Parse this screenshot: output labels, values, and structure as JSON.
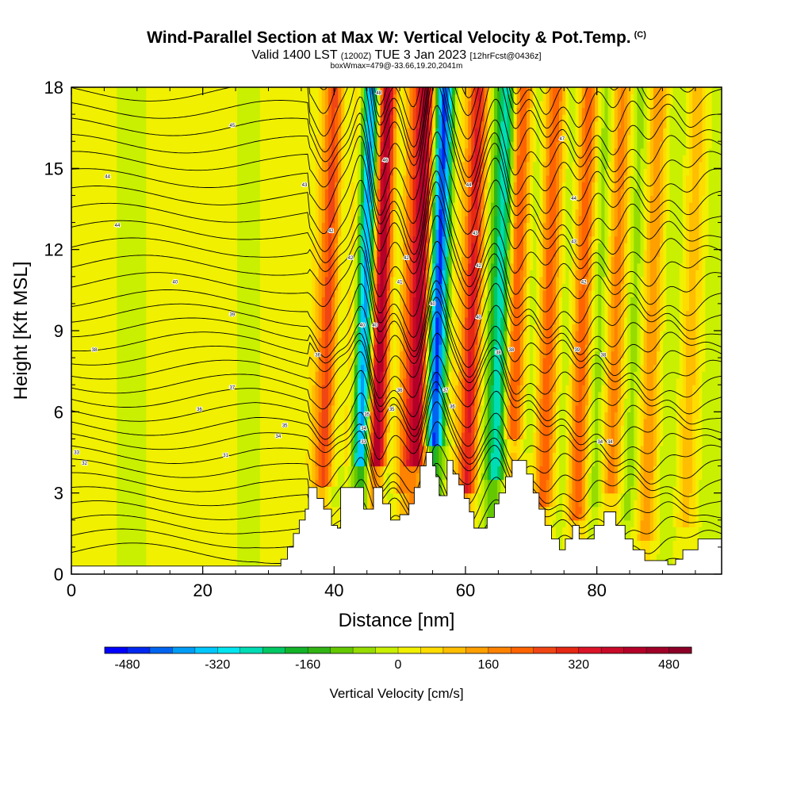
{
  "header": {
    "title": "Wind-Parallel Section at Max W: Vertical Velocity & Pot.Temp.",
    "copyright": "(C)",
    "valid_prefix": "Valid 1400 LST",
    "valid_utc": "(1200Z)",
    "valid_date": "TUE 3 Jan 2023",
    "forecast": "[12hrFcst@0436z]",
    "box_info": "boxWmax=479@-33.66,19.20,2041m"
  },
  "chart_data": {
    "type": "heatmap",
    "xlabel": "Distance [nm]",
    "ylabel": "Height [Kft MSL]",
    "xlim": [
      0,
      99
    ],
    "ylim": [
      0,
      18
    ],
    "xticks": [
      "0",
      "20",
      "40",
      "60",
      "80"
    ],
    "yticks": [
      "0",
      "3",
      "6",
      "9",
      "12",
      "15",
      "18"
    ],
    "colorbar": {
      "title": "Vertical Velocity [cm/s]",
      "range": [
        -520,
        520
      ],
      "step": 40,
      "labels": [
        "-480",
        "-320",
        "-160",
        "0",
        "160",
        "320",
        "480"
      ],
      "label_values": [
        -480,
        -320,
        -160,
        0,
        160,
        320,
        480
      ],
      "colors": [
        "#0000ff",
        "#0028f0",
        "#0064f0",
        "#009cf5",
        "#00c8ff",
        "#00e6f0",
        "#00dcb4",
        "#00c864",
        "#14b428",
        "#32b414",
        "#64c800",
        "#96dc00",
        "#c8f000",
        "#f0f000",
        "#ffdc00",
        "#ffbe00",
        "#ffa000",
        "#ff8200",
        "#ff6400",
        "#f04614",
        "#e62814",
        "#dc1428",
        "#c80a28",
        "#b40028",
        "#a00028",
        "#8c0028"
      ]
    },
    "w_bands": [
      {
        "x": 37,
        "w": 40
      },
      {
        "x": 38.8,
        "w": 260
      },
      {
        "x": 40.5,
        "w": -60
      },
      {
        "x": 42.6,
        "w": 120
      },
      {
        "x": 44.3,
        "w": -440
      },
      {
        "x": 46.6,
        "w": 480
      },
      {
        "x": 48.8,
        "w": -60
      },
      {
        "x": 50.6,
        "w": 160
      },
      {
        "x": 52.7,
        "w": 420
      },
      {
        "x": 55.4,
        "w": -470
      },
      {
        "x": 57.5,
        "w": 60
      },
      {
        "x": 60.6,
        "w": 330
      },
      {
        "x": 62.5,
        "w": -30
      },
      {
        "x": 64.9,
        "w": -280
      },
      {
        "x": 67.3,
        "w": 260
      },
      {
        "x": 69.6,
        "w": -40
      },
      {
        "x": 72.3,
        "w": 230
      },
      {
        "x": 75,
        "w": -40
      },
      {
        "x": 77.4,
        "w": 230
      },
      {
        "x": 80,
        "w": -70
      },
      {
        "x": 82.5,
        "w": 180
      },
      {
        "x": 85.3,
        "w": -60
      },
      {
        "x": 88,
        "w": 150
      },
      {
        "x": 91,
        "w": -40
      },
      {
        "x": 94,
        "w": 100
      },
      {
        "x": 97,
        "w": -20
      },
      {
        "x": 5,
        "w": 20
      },
      {
        "x": 9,
        "w": -20
      },
      {
        "x": 14,
        "w": 20
      },
      {
        "x": 22,
        "w": 25
      },
      {
        "x": 27,
        "w": -15
      },
      {
        "x": 31.5,
        "w": 30
      }
    ],
    "terrain": [
      [
        0,
        0.3
      ],
      [
        31.9,
        0.3
      ],
      [
        31.9,
        0.55
      ],
      [
        32.9,
        0.55
      ],
      [
        32.9,
        1.0
      ],
      [
        33.8,
        1.0
      ],
      [
        33.8,
        1.5
      ],
      [
        34.7,
        1.5
      ],
      [
        34.7,
        2.0
      ],
      [
        35.6,
        2.0
      ],
      [
        35.6,
        2.4
      ],
      [
        36.1,
        2.4
      ],
      [
        36.1,
        3.2
      ],
      [
        37.4,
        3.2
      ],
      [
        37.4,
        2.8
      ],
      [
        38.4,
        2.8
      ],
      [
        38.4,
        2.4
      ],
      [
        39.6,
        2.4
      ],
      [
        39.6,
        1.8
      ],
      [
        40.5,
        1.8
      ],
      [
        40.5,
        1.7
      ],
      [
        41,
        1.7
      ],
      [
        41,
        3.2
      ],
      [
        44.5,
        3.2
      ],
      [
        44.5,
        2.4
      ],
      [
        46,
        2.4
      ],
      [
        46,
        3.2
      ],
      [
        47.4,
        3.2
      ],
      [
        47.4,
        2.6
      ],
      [
        48.6,
        2.6
      ],
      [
        48.6,
        2.0
      ],
      [
        50,
        2.0
      ],
      [
        50,
        2.2
      ],
      [
        51.4,
        2.2
      ],
      [
        51.4,
        2.6
      ],
      [
        52.2,
        2.6
      ],
      [
        52.2,
        3.2
      ],
      [
        53.1,
        3.2
      ],
      [
        53.1,
        4.0
      ],
      [
        54,
        4.0
      ],
      [
        54,
        4.5
      ],
      [
        55,
        4.5
      ],
      [
        55,
        4.0
      ],
      [
        55.5,
        4.0
      ],
      [
        55.5,
        3.6
      ],
      [
        56,
        3.6
      ],
      [
        56,
        2.9
      ],
      [
        57.2,
        2.9
      ],
      [
        57.2,
        4.2
      ],
      [
        58.1,
        4.2
      ],
      [
        58.1,
        3.7
      ],
      [
        59,
        3.7
      ],
      [
        59,
        3.3
      ],
      [
        59.8,
        3.3
      ],
      [
        59.8,
        2.8
      ],
      [
        60.6,
        2.8
      ],
      [
        60.6,
        2.3
      ],
      [
        61.3,
        2.3
      ],
      [
        61.3,
        1.7
      ],
      [
        63.3,
        1.7
      ],
      [
        63.3,
        2.1
      ],
      [
        64.4,
        2.1
      ],
      [
        64.4,
        2.6
      ],
      [
        65.1,
        2.6
      ],
      [
        65.1,
        3.0
      ],
      [
        66.1,
        3.0
      ],
      [
        66.1,
        3.6
      ],
      [
        67.1,
        3.6
      ],
      [
        67.1,
        4.2
      ],
      [
        69.3,
        4.2
      ],
      [
        69.3,
        3.7
      ],
      [
        70.3,
        3.7
      ],
      [
        70.3,
        3.0
      ],
      [
        71.2,
        3.0
      ],
      [
        71.2,
        2.4
      ],
      [
        72.1,
        2.4
      ],
      [
        72.1,
        1.8
      ],
      [
        73.1,
        1.8
      ],
      [
        73.1,
        1.3
      ],
      [
        74.3,
        1.3
      ],
      [
        74.3,
        0.9
      ],
      [
        75.2,
        0.9
      ],
      [
        75.2,
        1.3
      ],
      [
        76.3,
        1.3
      ],
      [
        76.3,
        1.8
      ],
      [
        77.3,
        1.8
      ],
      [
        77.3,
        1.3
      ],
      [
        78.5,
        1.3
      ],
      [
        78.5,
        1.3
      ],
      [
        79.6,
        1.3
      ],
      [
        79.6,
        1.8
      ],
      [
        81.1,
        1.8
      ],
      [
        81.1,
        2.3
      ],
      [
        82.9,
        2.3
      ],
      [
        82.9,
        1.8
      ],
      [
        84.3,
        1.8
      ],
      [
        84.3,
        1.3
      ],
      [
        85.5,
        1.3
      ],
      [
        85.5,
        0.9
      ],
      [
        87.3,
        0.9
      ],
      [
        87.3,
        0.5
      ],
      [
        90.8,
        0.5
      ],
      [
        90.8,
        0.35
      ],
      [
        92,
        0.35
      ],
      [
        92,
        0.55
      ],
      [
        93.1,
        0.55
      ],
      [
        93.1,
        0.9
      ],
      [
        95.4,
        0.9
      ],
      [
        95.4,
        1.3
      ],
      [
        96.6,
        1.3
      ],
      [
        96.6,
        1.3
      ],
      [
        99,
        1.3
      ]
    ],
    "contour_labels": [
      {
        "x": 24.5,
        "y": 16.6,
        "text": "45"
      },
      {
        "x": 5.5,
        "y": 14.7,
        "text": "44"
      },
      {
        "x": 7,
        "y": 12.9,
        "text": "44"
      },
      {
        "x": 35.5,
        "y": 14.4,
        "text": "43"
      },
      {
        "x": 39.5,
        "y": 12.7,
        "text": "42"
      },
      {
        "x": 15.8,
        "y": 10.8,
        "text": "40"
      },
      {
        "x": 24.5,
        "y": 9.6,
        "text": "39"
      },
      {
        "x": 3.5,
        "y": 8.3,
        "text": "38"
      },
      {
        "x": 24.5,
        "y": 6.9,
        "text": "37"
      },
      {
        "x": 19.5,
        "y": 6.1,
        "text": "36"
      },
      {
        "x": 32.5,
        "y": 5.5,
        "text": "35"
      },
      {
        "x": 31.5,
        "y": 5.1,
        "text": "34"
      },
      {
        "x": 0.8,
        "y": 4.5,
        "text": "33"
      },
      {
        "x": 2,
        "y": 4.1,
        "text": "32"
      },
      {
        "x": 23.5,
        "y": 4.4,
        "text": "31"
      },
      {
        "x": 37.5,
        "y": 8.1,
        "text": "36"
      },
      {
        "x": 42.5,
        "y": 11.7,
        "text": "42"
      },
      {
        "x": 44.3,
        "y": 9.2,
        "text": "40"
      },
      {
        "x": 46.2,
        "y": 9.2,
        "text": "40"
      },
      {
        "x": 47.8,
        "y": 15.3,
        "text": "46"
      },
      {
        "x": 51,
        "y": 11.7,
        "text": "42"
      },
      {
        "x": 50,
        "y": 10.8,
        "text": "41"
      },
      {
        "x": 50,
        "y": 6.8,
        "text": "36"
      },
      {
        "x": 48.8,
        "y": 6.1,
        "text": "35"
      },
      {
        "x": 45,
        "y": 5.9,
        "text": "35"
      },
      {
        "x": 44.5,
        "y": 5.4,
        "text": "34"
      },
      {
        "x": 44.5,
        "y": 4.9,
        "text": "33"
      },
      {
        "x": 46.8,
        "y": 17.8,
        "text": "48"
      },
      {
        "x": 55,
        "y": 10.0,
        "text": "40"
      },
      {
        "x": 57,
        "y": 6.8,
        "text": "37"
      },
      {
        "x": 58,
        "y": 6.2,
        "text": "36"
      },
      {
        "x": 60.5,
        "y": 14.4,
        "text": "44"
      },
      {
        "x": 61.5,
        "y": 12.6,
        "text": "43"
      },
      {
        "x": 62,
        "y": 11.4,
        "text": "42"
      },
      {
        "x": 62,
        "y": 9.5,
        "text": "40"
      },
      {
        "x": 65,
        "y": 8.2,
        "text": "38"
      },
      {
        "x": 67,
        "y": 8.3,
        "text": "38"
      },
      {
        "x": 74.7,
        "y": 16.1,
        "text": "47"
      },
      {
        "x": 76.5,
        "y": 13.9,
        "text": "44"
      },
      {
        "x": 76.5,
        "y": 12.3,
        "text": "43"
      },
      {
        "x": 78,
        "y": 10.8,
        "text": "42"
      },
      {
        "x": 77,
        "y": 8.3,
        "text": "39"
      },
      {
        "x": 81,
        "y": 8.1,
        "text": "38"
      },
      {
        "x": 80.5,
        "y": 4.9,
        "text": "34"
      },
      {
        "x": 82,
        "y": 4.9,
        "text": "34"
      }
    ]
  }
}
